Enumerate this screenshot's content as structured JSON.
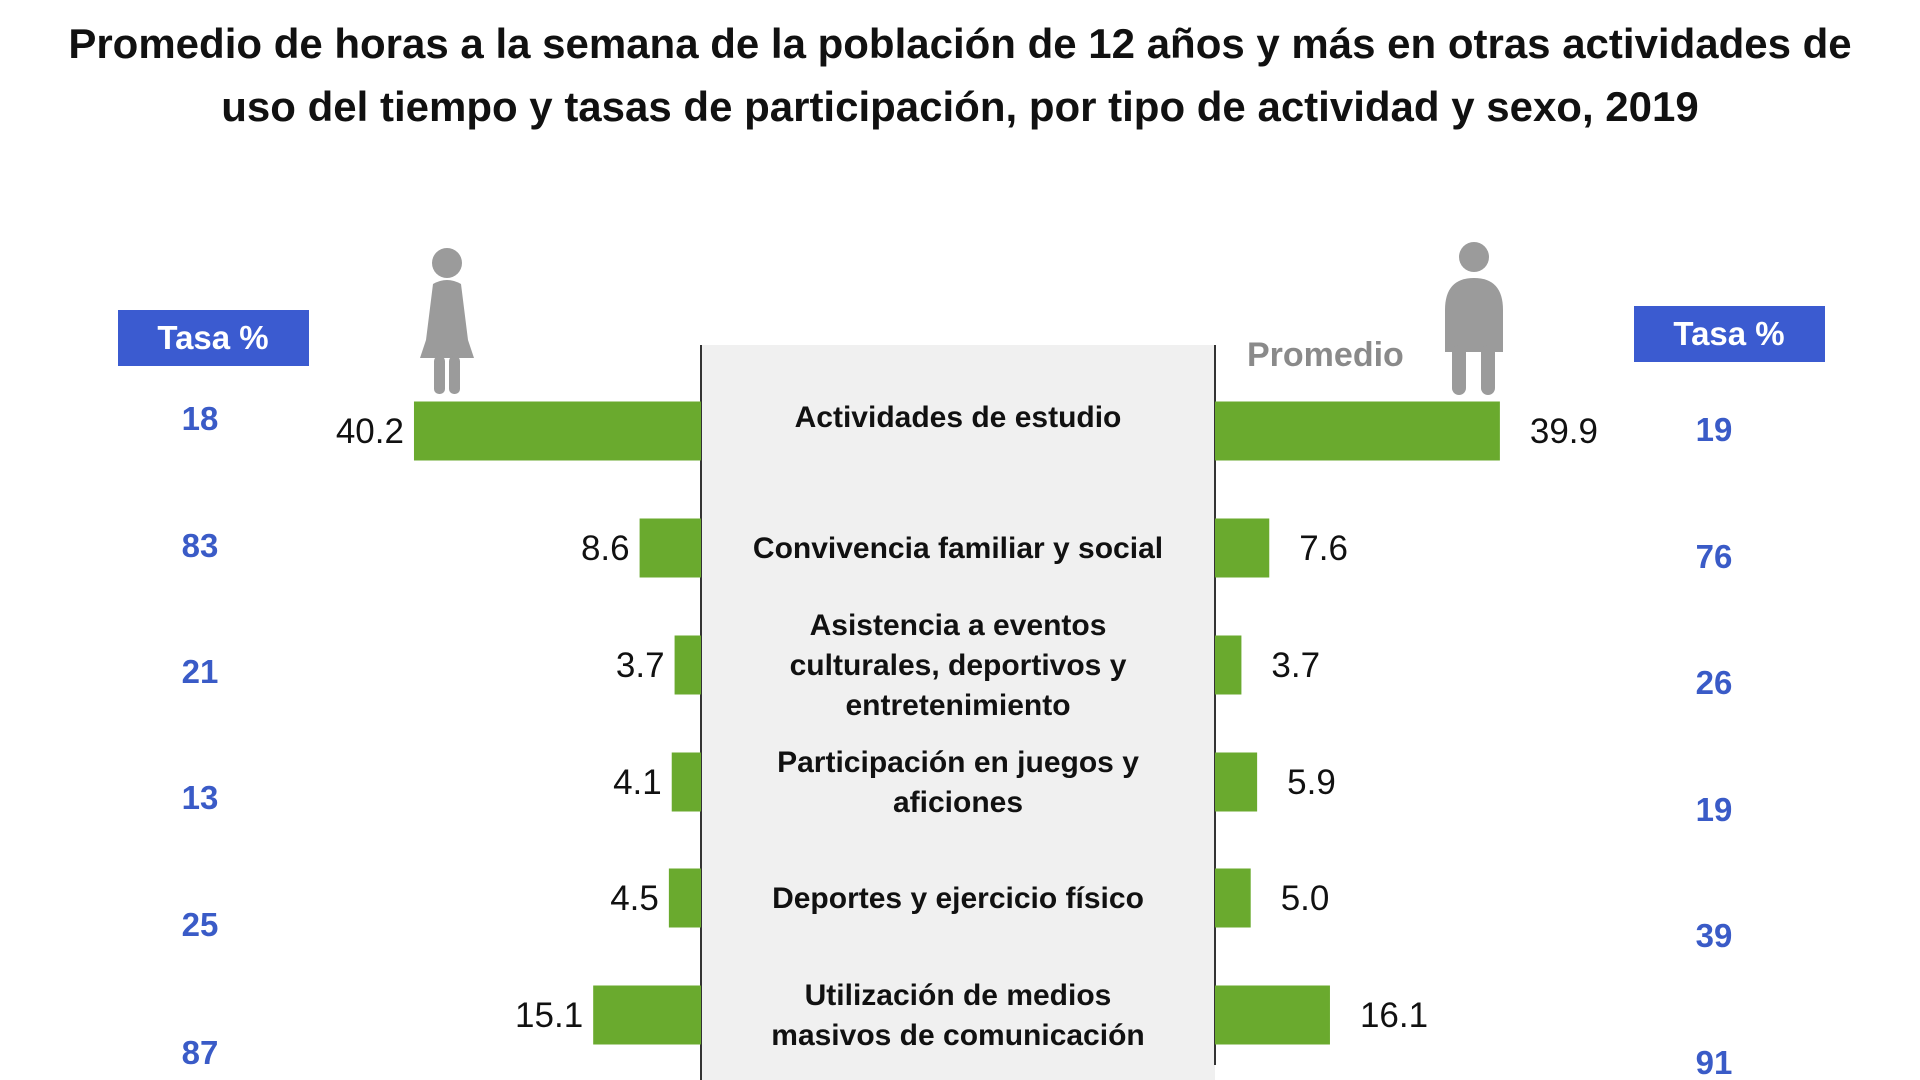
{
  "chart_data": {
    "type": "bar",
    "title": "Promedio de horas a la semana de la población de 12 años y más en otras actividades de uso del tiempo y tasas de participación, por tipo de actividad y sexo, 2019",
    "categories": [
      [
        "Actividades de estudio"
      ],
      [
        "Convivencia familiar y social"
      ],
      [
        "Asistencia a eventos",
        "culturales, deportivos y",
        "entretenimiento"
      ],
      [
        "Participación en juegos y",
        "aficiones"
      ],
      [
        "Deportes y ejercicio físico"
      ],
      [
        "Utilización de medios",
        "masivos de comunicación"
      ]
    ],
    "series": [
      {
        "icon": "female-icon",
        "values": [
          40.2,
          8.6,
          3.7,
          4.1,
          4.5,
          15.1
        ],
        "tasa": [
          18,
          83,
          21,
          13,
          25,
          87
        ]
      },
      {
        "icon": "male-icon",
        "values": [
          39.9,
          7.6,
          3.7,
          5.9,
          5.0,
          16.1
        ],
        "tasa": [
          19,
          76,
          26,
          19,
          39,
          91
        ]
      }
    ],
    "promedio_label": "Promedio",
    "tasa_header": "Tasa %",
    "colors": {
      "bar": "#6aaa2e",
      "tasa_box": "#3b5bd0",
      "tasa_text": "#3a5bc7",
      "icon": "#9b9b9b",
      "panel": "#f0f0f0"
    }
  }
}
